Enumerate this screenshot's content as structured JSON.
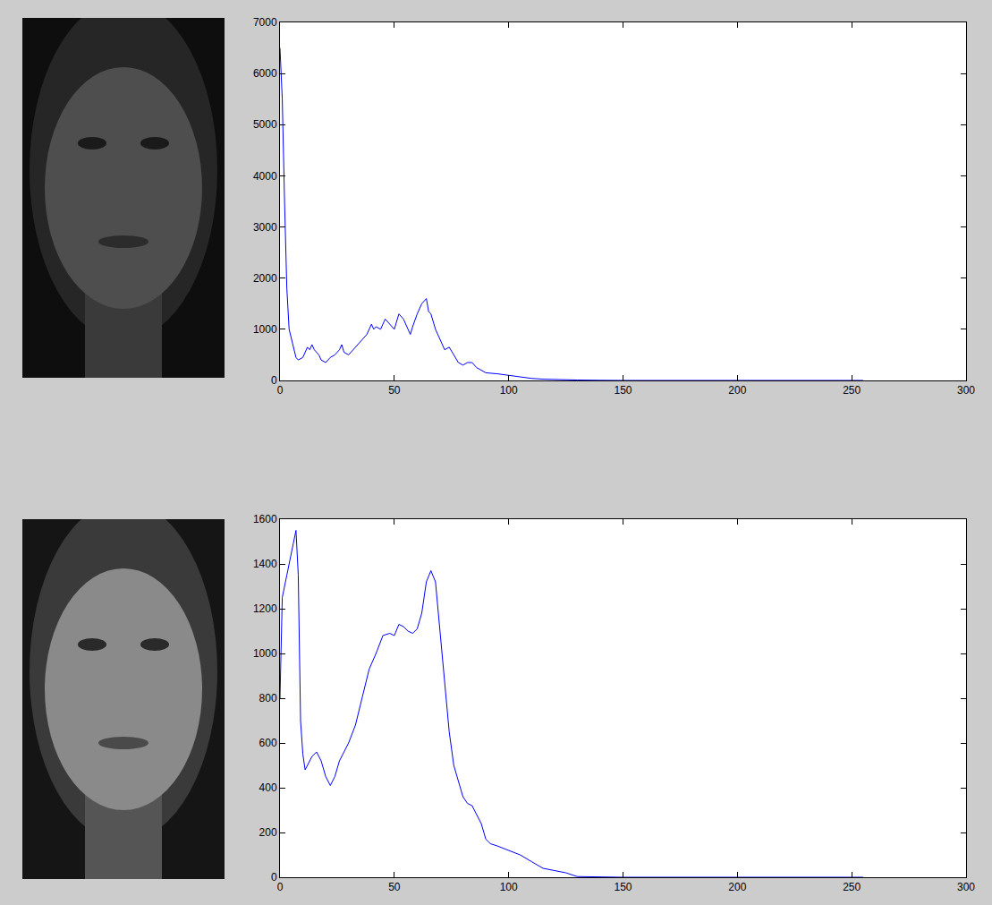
{
  "chart_data": [
    {
      "type": "line",
      "color": "#0000ff",
      "grid": false,
      "x": [
        0,
        1,
        2,
        3,
        4,
        5,
        6,
        7,
        8,
        10,
        12,
        13,
        14,
        15,
        17,
        18,
        20,
        22,
        24,
        26,
        27,
        28,
        30,
        32,
        34,
        36,
        38,
        40,
        41,
        42,
        44,
        46,
        48,
        50,
        52,
        54,
        56,
        57,
        58,
        60,
        62,
        64,
        65,
        66,
        68,
        70,
        72,
        74,
        76,
        78,
        80,
        82,
        84,
        86,
        88,
        90,
        95,
        100,
        105,
        110,
        115,
        120,
        130,
        140,
        150,
        200,
        255
      ],
      "values": [
        6500,
        5500,
        3500,
        1800,
        1000,
        800,
        600,
        450,
        400,
        450,
        650,
        600,
        700,
        600,
        500,
        400,
        350,
        450,
        500,
        600,
        700,
        550,
        500,
        600,
        700,
        800,
        900,
        1100,
        1000,
        1050,
        1000,
        1200,
        1100,
        1000,
        1300,
        1200,
        1000,
        900,
        1050,
        1300,
        1500,
        1600,
        1350,
        1300,
        1000,
        800,
        600,
        650,
        500,
        350,
        300,
        350,
        350,
        250,
        200,
        150,
        130,
        100,
        70,
        40,
        25,
        15,
        8,
        3,
        0,
        0,
        0
      ],
      "xlim": [
        0,
        300
      ],
      "xticks": [
        0,
        50,
        100,
        150,
        200,
        250,
        300
      ],
      "ylim": [
        0,
        7000
      ],
      "yticks": [
        0,
        1000,
        2000,
        3000,
        4000,
        5000,
        6000,
        7000
      ]
    },
    {
      "type": "line",
      "color": "#0000ff",
      "grid": false,
      "x": [
        0,
        1,
        3,
        5,
        7,
        8,
        9,
        10,
        11,
        12,
        14,
        16,
        18,
        20,
        22,
        24,
        26,
        28,
        30,
        33,
        36,
        39,
        42,
        45,
        48,
        50,
        52,
        54,
        56,
        58,
        60,
        62,
        64,
        66,
        68,
        70,
        72,
        74,
        76,
        78,
        80,
        82,
        84,
        86,
        88,
        90,
        92,
        95,
        100,
        105,
        110,
        115,
        120,
        125,
        130,
        150,
        200,
        255
      ],
      "values": [
        800,
        1250,
        1350,
        1450,
        1550,
        1350,
        700,
        550,
        480,
        500,
        540,
        560,
        520,
        450,
        410,
        450,
        520,
        560,
        600,
        680,
        800,
        930,
        1000,
        1080,
        1090,
        1080,
        1130,
        1120,
        1100,
        1090,
        1110,
        1180,
        1320,
        1370,
        1320,
        1100,
        850,
        650,
        500,
        430,
        360,
        330,
        320,
        280,
        240,
        170,
        150,
        140,
        120,
        100,
        70,
        40,
        30,
        20,
        3,
        0,
        0,
        0
      ],
      "xlim": [
        0,
        300
      ],
      "xticks": [
        0,
        50,
        100,
        150,
        200,
        250,
        300
      ],
      "ylim": [
        0,
        1600
      ],
      "yticks": [
        0,
        200,
        400,
        600,
        800,
        1000,
        1200,
        1400,
        1600
      ]
    }
  ]
}
